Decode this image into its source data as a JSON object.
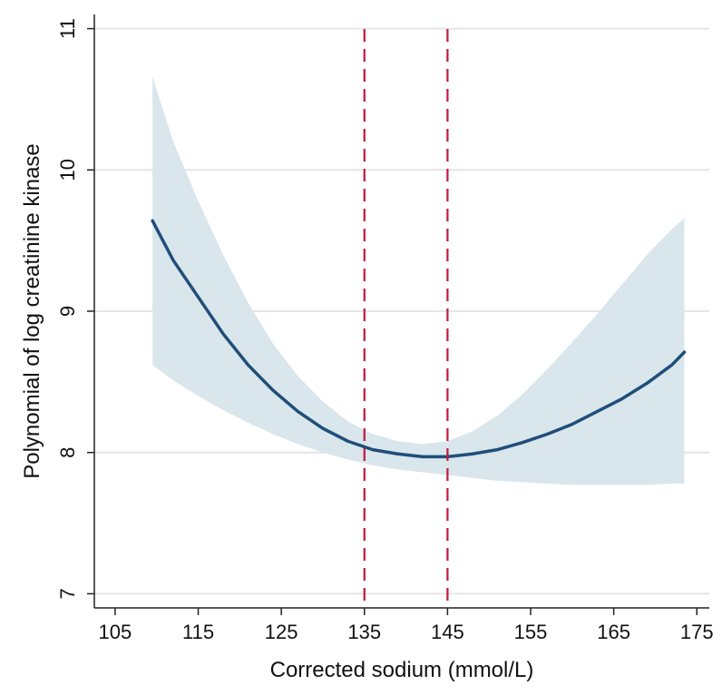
{
  "chart_data": {
    "type": "line",
    "title": "",
    "xlabel": "Corrected sodium (mmol/L)",
    "ylabel": "Polynomial of log creatinine kinase",
    "xlim": [
      102.5,
      176.5
    ],
    "ylim": [
      6.9,
      11.1
    ],
    "xticks": [
      105,
      115,
      125,
      135,
      145,
      155,
      165,
      175
    ],
    "yticks": [
      7,
      8,
      9,
      10,
      11
    ],
    "grid": "horizontal",
    "legend": "none",
    "series": [
      {
        "type": "line",
        "x": [
          109.5,
          112,
          115,
          118,
          121,
          124,
          127,
          130,
          133,
          136,
          139,
          142,
          145,
          148,
          151,
          154,
          157,
          160,
          163,
          166,
          169,
          172,
          173.5
        ],
        "y": [
          9.64,
          9.36,
          9.1,
          8.84,
          8.62,
          8.44,
          8.29,
          8.17,
          8.08,
          8.02,
          7.99,
          7.97,
          7.97,
          7.99,
          8.02,
          8.07,
          8.13,
          8.2,
          8.29,
          8.38,
          8.49,
          8.62,
          8.71
        ]
      },
      {
        "type": "band",
        "x": [
          109.5,
          112,
          115,
          118,
          121,
          124,
          127,
          130,
          133,
          136,
          139,
          142,
          145,
          148,
          151,
          154,
          157,
          160,
          163,
          166,
          169,
          172,
          173.5
        ],
        "lower": [
          8.62,
          8.51,
          8.4,
          8.3,
          8.21,
          8.13,
          8.06,
          8.0,
          7.95,
          7.91,
          7.88,
          7.86,
          7.84,
          7.82,
          7.8,
          7.79,
          7.78,
          7.77,
          7.77,
          7.77,
          7.77,
          7.78,
          7.78
        ],
        "upper": [
          10.66,
          10.2,
          9.78,
          9.4,
          9.06,
          8.77,
          8.54,
          8.36,
          8.22,
          8.13,
          8.08,
          8.06,
          8.08,
          8.15,
          8.26,
          8.41,
          8.59,
          8.78,
          8.98,
          9.19,
          9.4,
          9.58,
          9.66
        ]
      }
    ],
    "reference_lines": [
      {
        "axis": "x",
        "value": 135,
        "style": "dashed"
      },
      {
        "axis": "x",
        "value": 145,
        "style": "dashed"
      }
    ],
    "colors": {
      "line": "#1f4e79",
      "band": "#d9e6ec",
      "reference": "#c0183c",
      "grid": "#e6e6e6",
      "axis": "#222222"
    }
  }
}
